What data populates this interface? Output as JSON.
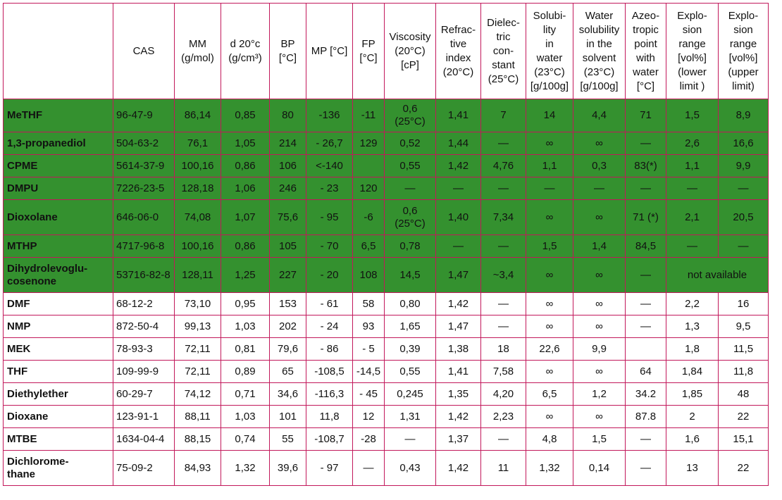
{
  "headers": [
    "",
    "CAS",
    "MM\n(g/mol)",
    "d 20°c\n(g/cm³)",
    "BP\n[°C]",
    "MP [°C]",
    "FP\n[°C]",
    "Viscosity\n(20°C)\n[cP]",
    "Refrac-\ntive\nindex\n(20°C)",
    "Dielec-\ntric\ncon-\nstant\n(25°C)",
    "Solubi-\nlity\nin\nwater\n(23°C)\n[g/100g]",
    "Water\nsolubility\nin the\nsolvent\n(23°C)\n[g/100g]",
    "Azeo-\ntropic\npoint\nwith\nwater\n[°C]",
    "Explo-\nsion\nrange\n[vol%]\n(lower\nlimit )",
    "Explo-\nsion\nrange\n[vol%]\n(upper\nlimit)"
  ],
  "rows": [
    {
      "green": true,
      "cells": [
        "MeTHF",
        "96-47-9",
        "86,14",
        "0,85",
        "80",
        "-136",
        "-11",
        "0,6\n(25°C)",
        "1,41",
        "7",
        "14",
        "4,4",
        "71",
        "1,5",
        "8,9"
      ]
    },
    {
      "green": true,
      "cells": [
        "1,3-propanediol",
        "504-63-2",
        "76,1",
        "1,05",
        "214",
        "- 26,7",
        "129",
        "0,52",
        "1,44",
        "—",
        "∞",
        "∞",
        "—",
        "2,6",
        "16,6"
      ]
    },
    {
      "green": true,
      "cells": [
        "CPME",
        "5614-37-9",
        "100,16",
        "0,86",
        "106",
        "<-140",
        "",
        "0,55",
        "1,42",
        "4,76",
        "1,1",
        "0,3",
        "83(*)",
        "1,1",
        "9,9"
      ]
    },
    {
      "green": true,
      "cells": [
        "DMPU",
        "7226-23-5",
        "128,18",
        "1,06",
        "246",
        "- 23",
        "120",
        "—",
        "—",
        "—",
        "—",
        "—",
        "—",
        "—",
        "—"
      ]
    },
    {
      "green": true,
      "cells": [
        "Dioxolane",
        "646-06-0",
        "74,08",
        "1,07",
        "75,6",
        "- 95",
        "-6",
        "0,6\n(25°C)",
        "1,40",
        "7,34",
        "∞",
        "∞",
        "71 (*)",
        "2,1",
        "20,5"
      ]
    },
    {
      "green": true,
      "cells": [
        "MTHP",
        "4717-96-8",
        "100,16",
        "0,86",
        "105",
        "- 70",
        "6,5",
        "0,78",
        "—",
        "—",
        "1,5",
        "1,4",
        "84,5",
        "—",
        "—"
      ]
    },
    {
      "green": true,
      "span": true,
      "cells": [
        "Dihydrolevoglu-\ncosenone",
        "53716-82-8",
        "128,11",
        "1,25",
        "227",
        "- 20",
        "108",
        "14,5",
        "1,47",
        "~3,4",
        "∞",
        "∞",
        "—",
        "not available"
      ]
    },
    {
      "green": false,
      "cells": [
        "DMF",
        "68-12-2",
        "73,10",
        "0,95",
        "153",
        "- 61",
        "58",
        "0,80",
        "1,42",
        "—",
        "∞",
        "∞",
        "—",
        "2,2",
        "16"
      ]
    },
    {
      "green": false,
      "cells": [
        "NMP",
        "872-50-4",
        "99,13",
        "1,03",
        "202",
        "- 24",
        "93",
        "1,65",
        "1,47",
        "—",
        "∞",
        "∞",
        "—",
        "1,3",
        "9,5"
      ]
    },
    {
      "green": false,
      "cells": [
        "MEK",
        "78-93-3",
        "72,11",
        "0,81",
        "79,6",
        "- 86",
        "- 5",
        "0,39",
        "1,38",
        "18",
        "22,6",
        "9,9",
        "",
        "1,8",
        "11,5"
      ]
    },
    {
      "green": false,
      "cells": [
        "THF",
        "109-99-9",
        "72,11",
        "0,89",
        "65",
        "-108,5",
        "-14,5",
        "0,55",
        "1,41",
        "7,58",
        "∞",
        "∞",
        "64",
        "1,84",
        "11,8"
      ]
    },
    {
      "green": false,
      "cells": [
        "Diethylether",
        "60-29-7",
        "74,12",
        "0,71",
        "34,6",
        "-116,3",
        "- 45",
        "0,245",
        "1,35",
        "4,20",
        "6,5",
        "1,2",
        "34.2",
        "1,85",
        "48"
      ]
    },
    {
      "green": false,
      "cells": [
        "Dioxane",
        "123-91-1",
        "88,11",
        "1,03",
        "101",
        "11,8",
        "12",
        "1,31",
        "1,42",
        "2,23",
        "∞",
        "∞",
        "87.8",
        "2",
        "22"
      ]
    },
    {
      "green": false,
      "cells": [
        "MTBE",
        "1634-04-4",
        "88,15",
        "0,74",
        "55",
        "-108,7",
        "-28",
        "—",
        "1,37",
        "—",
        "4,8",
        "1,5",
        "—",
        "1,6",
        "15,1"
      ]
    },
    {
      "green": false,
      "cells": [
        "Dichlorome-\nthane",
        "75-09-2",
        "84,93",
        "1,32",
        "39,6",
        "- 97",
        "—",
        "0,43",
        "1,42",
        "11",
        "1,32",
        "0,14",
        "—",
        "13",
        "22"
      ]
    }
  ]
}
